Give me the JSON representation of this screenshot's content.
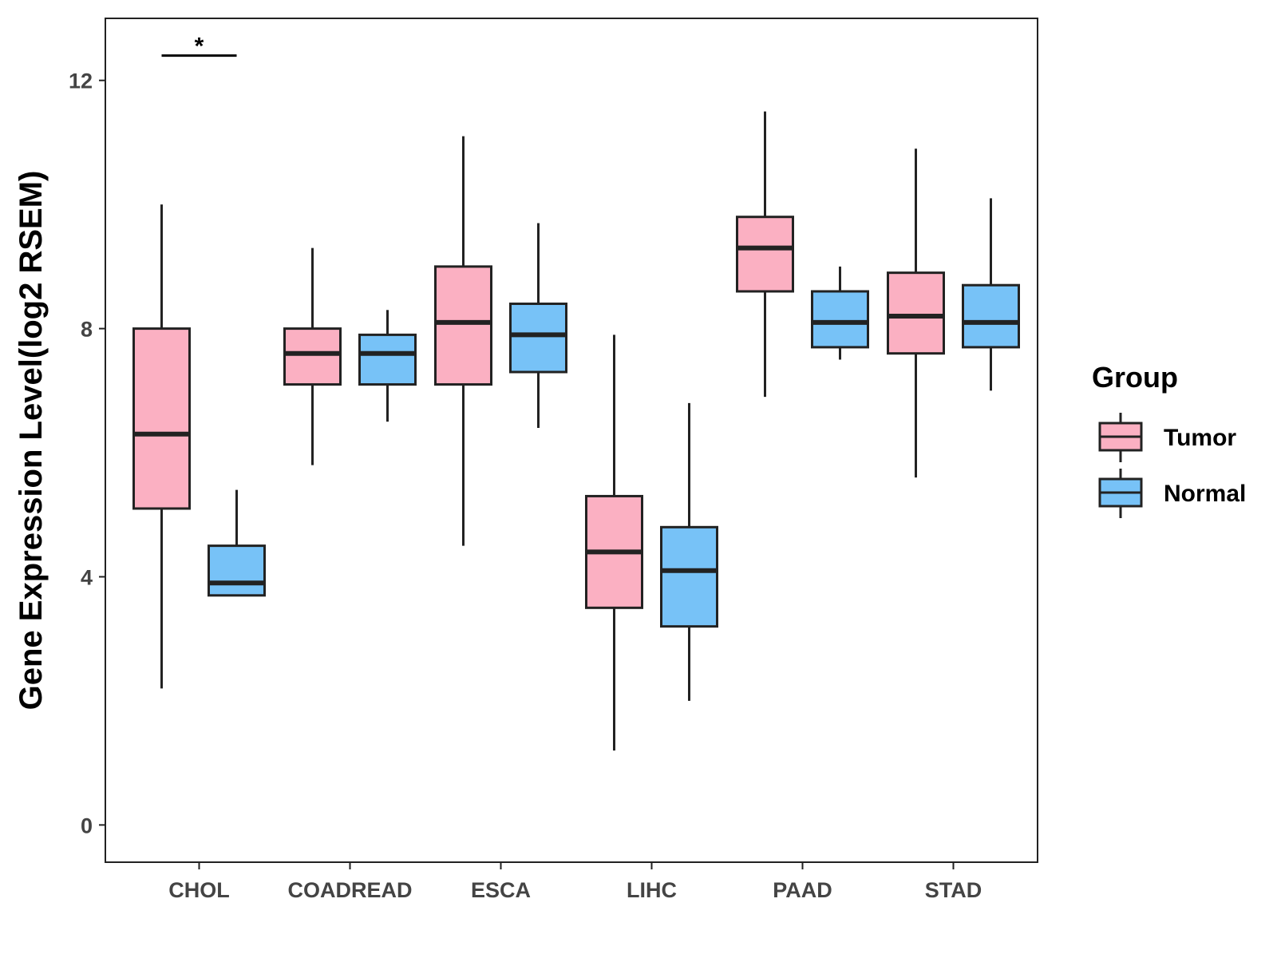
{
  "chart_data": {
    "type": "boxplot",
    "title": "",
    "xlabel": "",
    "ylabel": "Gene Expression Level(log2 RSEM)",
    "ylim": [
      -0.6,
      13.0
    ],
    "yticks": [
      0,
      4,
      8,
      12
    ],
    "ytick_labels": [
      "0",
      "4",
      "8",
      "12"
    ],
    "categories": [
      "CHOL",
      "COADREAD",
      "ESCA",
      "LIHC",
      "PAAD",
      "STAD"
    ],
    "legend": {
      "title": "Group",
      "position": "right"
    },
    "series": [
      {
        "name": "Tumor",
        "color": "#FBB0C2",
        "boxes": [
          {
            "category": "CHOL",
            "min": 2.2,
            "q1": 5.1,
            "median": 6.3,
            "q3": 8.0,
            "max": 10.0
          },
          {
            "category": "COADREAD",
            "min": 5.8,
            "q1": 7.1,
            "median": 7.6,
            "q3": 8.0,
            "max": 9.3
          },
          {
            "category": "ESCA",
            "min": 4.5,
            "q1": 7.1,
            "median": 8.1,
            "q3": 9.0,
            "max": 11.1
          },
          {
            "category": "LIHC",
            "min": 1.2,
            "q1": 3.5,
            "median": 4.4,
            "q3": 5.3,
            "max": 7.9
          },
          {
            "category": "PAAD",
            "min": 6.9,
            "q1": 8.6,
            "median": 9.3,
            "q3": 9.8,
            "max": 11.5
          },
          {
            "category": "STAD",
            "min": 5.6,
            "q1": 7.6,
            "median": 8.2,
            "q3": 8.9,
            "max": 10.9
          }
        ]
      },
      {
        "name": "Normal",
        "color": "#77C2F7",
        "boxes": [
          {
            "category": "CHOL",
            "min": 3.7,
            "q1": 3.7,
            "median": 3.9,
            "q3": 4.5,
            "max": 5.4
          },
          {
            "category": "COADREAD",
            "min": 6.5,
            "q1": 7.1,
            "median": 7.6,
            "q3": 7.9,
            "max": 8.3
          },
          {
            "category": "ESCA",
            "min": 6.4,
            "q1": 7.3,
            "median": 7.9,
            "q3": 8.4,
            "max": 9.7
          },
          {
            "category": "LIHC",
            "min": 2.0,
            "q1": 3.2,
            "median": 4.1,
            "q3": 4.8,
            "max": 6.8
          },
          {
            "category": "PAAD",
            "min": 7.5,
            "q1": 7.7,
            "median": 8.1,
            "q3": 8.6,
            "max": 9.0
          },
          {
            "category": "STAD",
            "min": 7.0,
            "q1": 7.7,
            "median": 8.1,
            "q3": 8.7,
            "max": 10.1
          }
        ]
      }
    ],
    "annotations": [
      {
        "category": "CHOL",
        "text": "*",
        "y": 12.4
      }
    ]
  }
}
